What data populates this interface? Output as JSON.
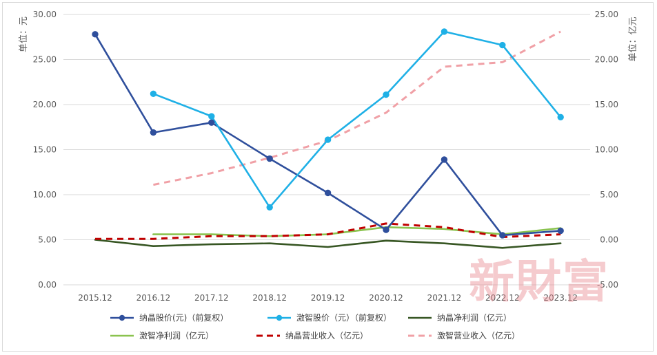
{
  "watermark": "新財富",
  "chart_data": {
    "type": "line",
    "categories": [
      "2015.12",
      "2016.12",
      "2017.12",
      "2018.12",
      "2019.12",
      "2020.12",
      "2021.12",
      "2022.12",
      "2023.12"
    ],
    "left_axis": {
      "unit_label": "单位：元",
      "range": [
        0,
        30
      ],
      "ticks": [
        "0.00",
        "5.00",
        "10.00",
        "15.00",
        "20.00",
        "25.00",
        "30.00"
      ]
    },
    "right_axis": {
      "unit_label": "单位：亿元",
      "range": [
        -5,
        25
      ],
      "ticks": [
        "-5.00",
        "0.00",
        "5.00",
        "10.00",
        "15.00",
        "20.00",
        "25.00"
      ]
    },
    "grid": true,
    "legend_position": "bottom",
    "series": [
      {
        "name": "纳晶股价(元)（前复权）",
        "axis": "left",
        "color": "#2f4f9c",
        "style": "solid-marker",
        "values": [
          27.8,
          16.9,
          18.0,
          14.0,
          10.2,
          6.1,
          13.9,
          5.5,
          6.0
        ]
      },
      {
        "name": "激智股价（元）（前复权）",
        "axis": "left",
        "color": "#1fb0e6",
        "style": "solid-marker",
        "values": [
          null,
          21.2,
          18.7,
          8.6,
          16.1,
          21.1,
          28.1,
          26.6,
          18.6
        ]
      },
      {
        "name": "纳晶净利润（亿元）",
        "axis": "right",
        "color": "#375623",
        "style": "solid",
        "values": [
          0.0,
          -0.7,
          -0.5,
          -0.4,
          -0.8,
          -0.1,
          -0.4,
          -0.9,
          -0.4
        ]
      },
      {
        "name": "激智净利润（亿元）",
        "axis": "right",
        "color": "#8ac34f",
        "style": "solid",
        "values": [
          null,
          0.6,
          0.6,
          0.4,
          0.6,
          1.4,
          1.2,
          0.6,
          1.3
        ]
      },
      {
        "name": "纳晶营业收入（亿元）",
        "axis": "right",
        "color": "#c00000",
        "style": "dashed",
        "values": [
          0.1,
          0.1,
          0.4,
          0.4,
          0.6,
          1.8,
          1.4,
          0.3,
          0.6
        ]
      },
      {
        "name": "激智营业收入（亿元）",
        "axis": "right",
        "color": "#f0a0a6",
        "style": "dashed",
        "values": [
          null,
          6.1,
          7.4,
          9.1,
          11.0,
          14.1,
          19.2,
          19.7,
          23.1
        ]
      }
    ]
  }
}
